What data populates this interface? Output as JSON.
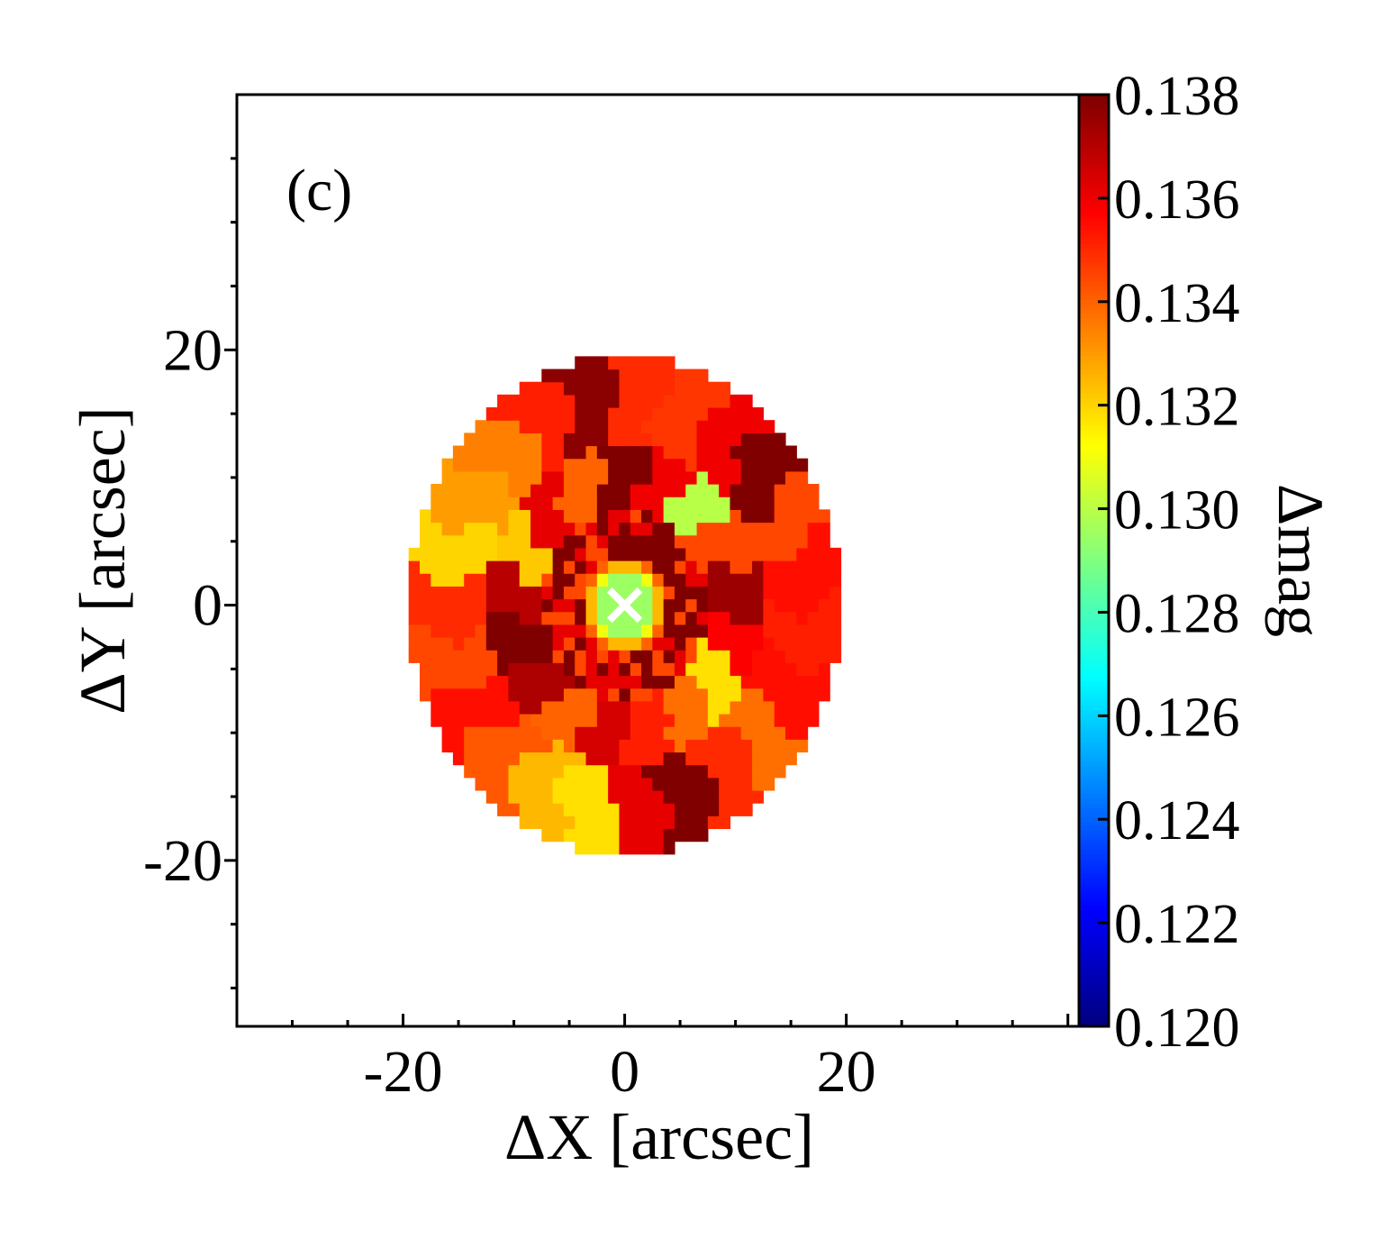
{
  "chart_data": {
    "type": "heatmap",
    "panel_label": "(c)",
    "xlabel": "ΔX [arcsec]",
    "ylabel": "ΔY [arcsec]",
    "colorbar_label": "Δmag",
    "xlim": [
      -35,
      41
    ],
    "ylim": [
      -33,
      40
    ],
    "x_ticks": [
      -20,
      0,
      20
    ],
    "x_tick_labels": [
      "-20",
      "0",
      "20"
    ],
    "y_ticks": [
      -20,
      0,
      20
    ],
    "y_tick_labels": [
      "-20",
      "0",
      "20"
    ],
    "colorbar_range": [
      0.12,
      0.138
    ],
    "colorbar_ticks": [
      0.12,
      0.122,
      0.124,
      0.126,
      0.128,
      0.13,
      0.132,
      0.134,
      0.136,
      0.138
    ],
    "colorbar_tick_labels": [
      "0.120",
      "0.122",
      "0.124",
      "0.126",
      "0.128",
      "0.130",
      "0.132",
      "0.134",
      "0.136",
      "0.138"
    ],
    "colormap": "jet",
    "map_radius_arcsec": 19.5,
    "center_value": 0.1295,
    "ring_values": [
      0.131,
      0.1325,
      0.134,
      0.1355
    ],
    "outer_cell_values": [
      0.1355,
      0.1345,
      0.138,
      0.136,
      0.1348,
      0.135,
      0.1378,
      0.1352,
      0.1335,
      0.133,
      0.132,
      0.135,
      0.1345,
      0.1355,
      0.1342,
      0.1325,
      0.1318,
      0.1362,
      0.138,
      0.135,
      0.1338,
      0.1355,
      0.1352
    ],
    "mid_cell_values": [
      0.1375,
      0.1345,
      0.13,
      0.136,
      0.138,
      0.134,
      0.1362,
      0.1322,
      0.137,
      0.138,
      0.1372,
      0.134,
      0.1365,
      0.1352,
      0.1338,
      0.1318,
      0.1358
    ],
    "center_marker": "x",
    "marker_color": "#ffffff"
  }
}
